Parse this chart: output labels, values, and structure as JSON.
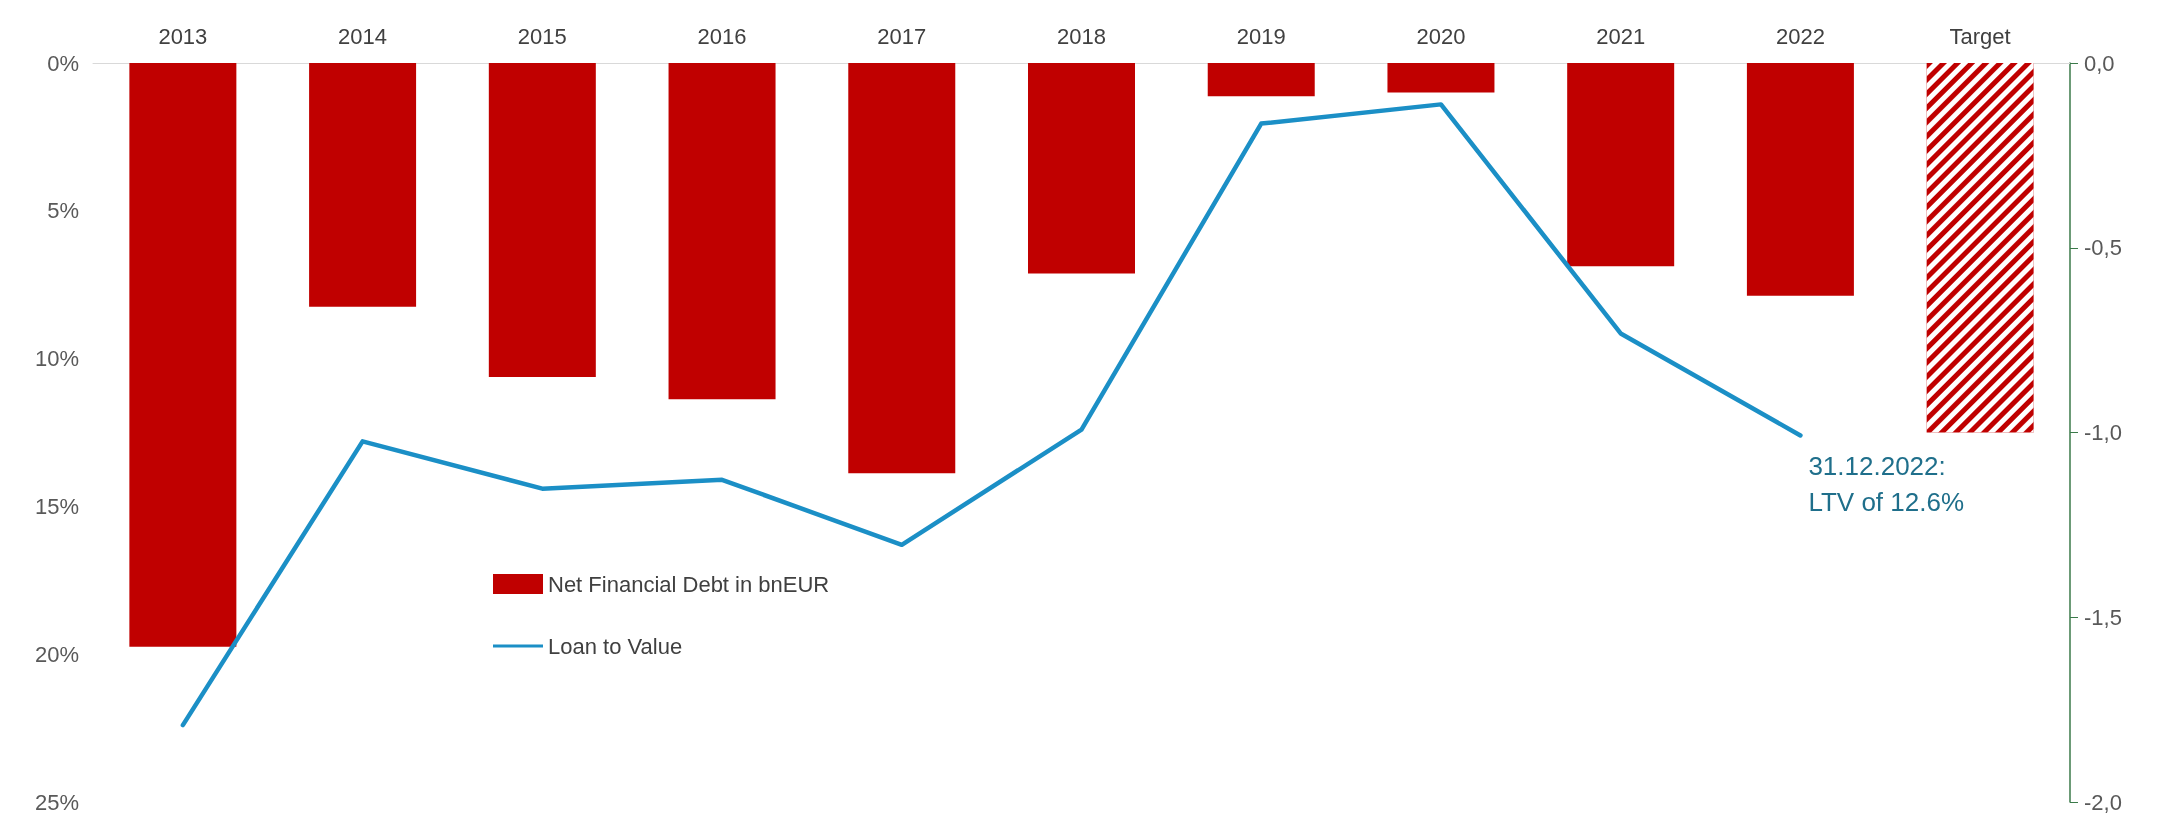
{
  "chart_data": {
    "type": "bar",
    "categories": [
      "2013",
      "2014",
      "2015",
      "2016",
      "2017",
      "2018",
      "2019",
      "2020",
      "2021",
      "2022",
      "Target"
    ],
    "series": [
      {
        "name": "Net Financial Debt in bnEUR",
        "axis": "y2",
        "color": "#c00000",
        "values": [
          -1.58,
          -0.66,
          -0.85,
          -0.91,
          -1.11,
          -0.57,
          -0.09,
          -0.08,
          -0.55,
          -0.63,
          null
        ]
      },
      {
        "axis": "y2",
        "color": "#c00000",
        "values": [
          null,
          null,
          null,
          null,
          null,
          null,
          null,
          null,
          null,
          null,
          -1.0
        ]
      },
      {
        "name": "Loan to Value",
        "type": "line",
        "color": "#1b8fc6",
        "values": [
          22.4,
          12.8,
          14.4,
          14.1,
          16.3,
          12.4,
          2.05,
          1.4,
          9.15,
          12.6,
          null
        ]
      }
    ],
    "ylim": [
      25,
      0
    ],
    "yticks": [
      {
        "value": 0,
        "label": "0%"
      },
      {
        "value": 5,
        "label": "5%"
      },
      {
        "value": 10,
        "label": "10%"
      },
      {
        "value": 15,
        "label": "15%"
      },
      {
        "value": 20,
        "label": "20%"
      },
      {
        "value": 25,
        "label": "25%"
      }
    ],
    "y2lim": [
      -2,
      0
    ],
    "y2ticks": [
      {
        "value": 0,
        "label": "0,0"
      },
      {
        "value": -0.5,
        "label": "-0,5"
      },
      {
        "value": -1,
        "label": "-1,0"
      },
      {
        "value": -1.5,
        "label": "-1,5"
      },
      {
        "value": -2,
        "label": "-2,0"
      }
    ],
    "annotations": [
      {
        "text": "31.12.2022:\nLTV of 12.6%",
        "x": "2022",
        "y": 12.6
      }
    ],
    "legend": "left",
    "grid": false,
    "marker": "none",
    "line_style": "solid"
  }
}
